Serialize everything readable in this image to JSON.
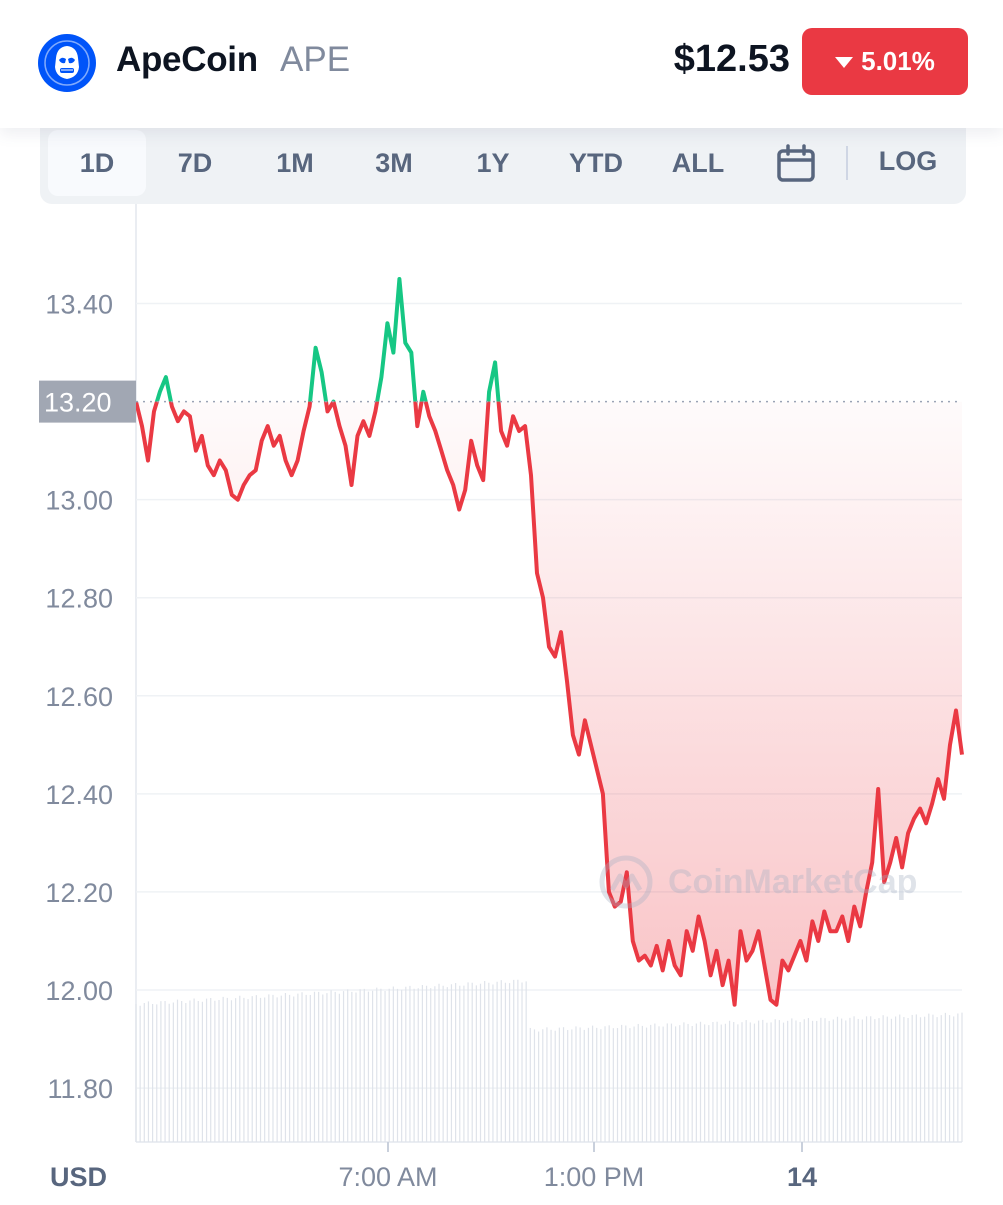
{
  "header": {
    "coin_name": "ApeCoin",
    "coin_symbol": "APE",
    "price": "$12.53",
    "change": "5.01%",
    "change_direction": "down",
    "logo_icon": "apecoin-logo-icon"
  },
  "range_selector": {
    "options": [
      "1D",
      "7D",
      "1M",
      "3M",
      "1Y",
      "YTD",
      "ALL"
    ],
    "active": "1D",
    "calendar_icon": "calendar-icon",
    "log_label": "LOG"
  },
  "colors": {
    "up": "#16c784",
    "down": "#ea3943",
    "grid": "#eff2f5",
    "axis_text": "#808a9d"
  },
  "watermark": "CoinMarketCap",
  "chart_data": {
    "type": "line",
    "title": "",
    "currency_label": "USD",
    "ylim": [
      11.69,
      13.55
    ],
    "y_ticks": [
      "13.40",
      "13.00",
      "12.80",
      "12.60",
      "12.40",
      "12.20",
      "12.00",
      "11.80"
    ],
    "reference_line": {
      "value": 13.2,
      "label": "13.20"
    },
    "x_ticks": [
      "7:00 AM",
      "1:00 PM",
      "14"
    ],
    "series": [
      {
        "values": [
          13.2,
          13.15,
          13.08,
          13.18,
          13.22,
          13.25,
          13.19,
          13.16,
          13.18,
          13.17,
          13.1,
          13.13,
          13.07,
          13.05,
          13.08,
          13.06,
          13.01,
          13.0,
          13.03,
          13.05,
          13.06,
          13.12,
          13.15,
          13.11,
          13.13,
          13.08,
          13.05,
          13.08,
          13.14,
          13.19,
          13.31,
          13.26,
          13.18,
          13.2,
          13.15,
          13.11,
          13.03,
          13.13,
          13.16,
          13.13,
          13.18,
          13.25,
          13.36,
          13.3,
          13.45,
          13.32,
          13.3,
          13.15,
          13.22,
          13.17,
          13.14,
          13.1,
          13.06,
          13.03,
          12.98,
          13.02,
          13.12,
          13.07,
          13.04,
          13.22,
          13.28,
          13.14,
          13.11,
          13.17,
          13.14,
          13.15,
          13.05,
          12.85,
          12.8,
          12.7,
          12.68,
          12.73,
          12.63,
          12.52,
          12.48,
          12.55,
          12.5,
          12.45,
          12.4,
          12.2,
          12.17,
          12.18,
          12.24,
          12.1,
          12.06,
          12.07,
          12.05,
          12.09,
          12.04,
          12.1,
          12.05,
          12.03,
          12.12,
          12.08,
          12.15,
          12.1,
          12.03,
          12.08,
          12.01,
          12.06,
          11.97,
          12.12,
          12.06,
          12.08,
          12.12,
          12.05,
          11.98,
          11.97,
          12.06,
          12.04,
          12.07,
          12.1,
          12.06,
          12.14,
          12.1,
          12.16,
          12.12,
          12.12,
          12.15,
          12.1,
          12.17,
          12.13,
          12.2,
          12.26,
          12.41,
          12.22,
          12.26,
          12.31,
          12.25,
          12.32,
          12.35,
          12.37,
          12.34,
          12.38,
          12.43,
          12.39,
          12.5,
          12.57,
          12.48
        ]
      }
    ],
    "volume_bars": "present"
  }
}
